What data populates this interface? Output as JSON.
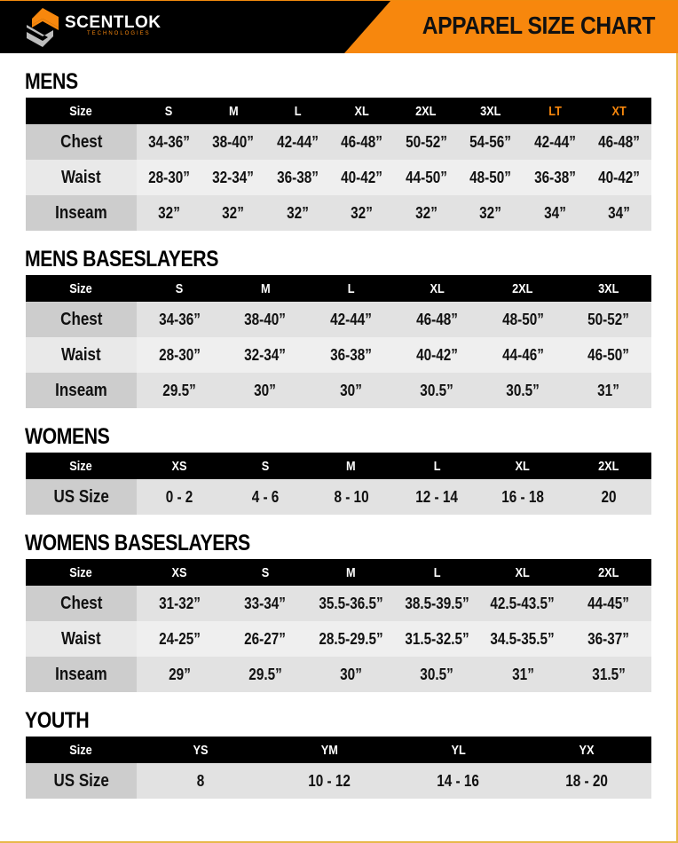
{
  "header": {
    "brand": "SCENTLOK",
    "brand_sub": "TECHNOLOGIES",
    "title": "APPAREL SIZE CHART"
  },
  "colors": {
    "accent": "#f7870d",
    "header_bg": "#000000",
    "highlight_text": "#f7870d"
  },
  "sections": [
    {
      "title": "MENS",
      "header": [
        "Size",
        "S",
        "M",
        "L",
        "XL",
        "2XL",
        "3XL",
        "LT",
        "XT"
      ],
      "highlight": [
        "LT",
        "XT"
      ],
      "rows": [
        [
          "Chest",
          "34-36”",
          "38-40”",
          "42-44”",
          "46-48”",
          "50-52”",
          "54-56”",
          "42-44”",
          "46-48”"
        ],
        [
          "Waist",
          "28-30”",
          "32-34”",
          "36-38”",
          "40-42”",
          "44-50”",
          "48-50”",
          "36-38”",
          "40-42”"
        ],
        [
          "Inseam",
          "32”",
          "32”",
          "32”",
          "32”",
          "32”",
          "32”",
          "34”",
          "34”"
        ]
      ]
    },
    {
      "title": "MENS BASESLAYERS",
      "header": [
        "Size",
        "S",
        "M",
        "L",
        "XL",
        "2XL",
        "3XL"
      ],
      "rows": [
        [
          "Chest",
          "34-36”",
          "38-40”",
          "42-44”",
          "46-48”",
          "48-50”",
          "50-52”"
        ],
        [
          "Waist",
          "28-30”",
          "32-34”",
          "36-38”",
          "40-42”",
          "44-46”",
          "46-50”"
        ],
        [
          "Inseam",
          "29.5”",
          "30”",
          "30”",
          "30.5”",
          "30.5”",
          "31”"
        ]
      ]
    },
    {
      "title": "WOMENS",
      "header": [
        "Size",
        "XS",
        "S",
        "M",
        "L",
        "XL",
        "2XL"
      ],
      "rows": [
        [
          "US Size",
          "0 - 2",
          "4 - 6",
          "8 - 10",
          "12 - 14",
          "16 - 18",
          "20"
        ]
      ]
    },
    {
      "title": "WOMENS BASESLAYERS",
      "header": [
        "Size",
        "XS",
        "S",
        "M",
        "L",
        "XL",
        "2XL"
      ],
      "rows": [
        [
          "Chest",
          "31-32”",
          "33-34”",
          "35.5-36.5”",
          "38.5-39.5”",
          "42.5-43.5”",
          "44-45”"
        ],
        [
          "Waist",
          "24-25”",
          "26-27”",
          "28.5-29.5”",
          "31.5-32.5”",
          "34.5-35.5”",
          "36-37”"
        ],
        [
          "Inseam",
          "29”",
          "29.5”",
          "30”",
          "30.5”",
          "31”",
          "31.5”"
        ]
      ]
    },
    {
      "title": "YOUTH",
      "header": [
        "Size",
        "YS",
        "YM",
        "YL",
        "YX"
      ],
      "rows": [
        [
          "US Size",
          "8",
          "10 - 12",
          "14 - 16",
          "18 - 20"
        ]
      ]
    }
  ]
}
